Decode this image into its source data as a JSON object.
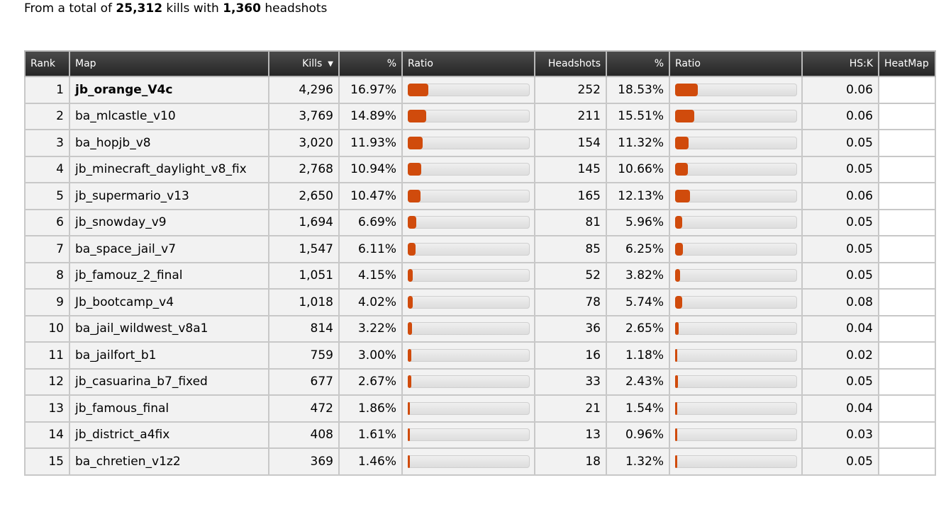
{
  "summary": {
    "prefix": "From a total of ",
    "total_kills": "25,312",
    "middle": " kills with ",
    "total_headshots": "1,360",
    "suffix": " headshots"
  },
  "table": {
    "headers": {
      "rank": "Rank",
      "map": "Map",
      "kills": "Kills",
      "kills_pct": "%",
      "kills_ratio": "Ratio",
      "headshots": "Headshots",
      "hs_pct": "%",
      "hs_ratio": "Ratio",
      "hsk": "HS:K",
      "heatmap": "HeatMap"
    },
    "sort_column": "kills",
    "sort_direction": "desc",
    "rows": [
      {
        "rank": "1",
        "map": "jb_orange_V4c",
        "bold": true,
        "kills": "4,296",
        "kills_pct": "16.97%",
        "kills_ratio": 16.97,
        "headshots": "252",
        "hs_pct": "18.53%",
        "hs_ratio": 18.53,
        "hsk": "0.06"
      },
      {
        "rank": "2",
        "map": "ba_mlcastle_v10",
        "kills": "3,769",
        "kills_pct": "14.89%",
        "kills_ratio": 14.89,
        "headshots": "211",
        "hs_pct": "15.51%",
        "hs_ratio": 15.51,
        "hsk": "0.06"
      },
      {
        "rank": "3",
        "map": "ba_hopjb_v8",
        "kills": "3,020",
        "kills_pct": "11.93%",
        "kills_ratio": 11.93,
        "headshots": "154",
        "hs_pct": "11.32%",
        "hs_ratio": 11.32,
        "hsk": "0.05"
      },
      {
        "rank": "4",
        "map": "jb_minecraft_daylight_v8_fix",
        "kills": "2,768",
        "kills_pct": "10.94%",
        "kills_ratio": 10.94,
        "headshots": "145",
        "hs_pct": "10.66%",
        "hs_ratio": 10.66,
        "hsk": "0.05"
      },
      {
        "rank": "5",
        "map": "jb_supermario_v13",
        "kills": "2,650",
        "kills_pct": "10.47%",
        "kills_ratio": 10.47,
        "headshots": "165",
        "hs_pct": "12.13%",
        "hs_ratio": 12.13,
        "hsk": "0.06"
      },
      {
        "rank": "6",
        "map": "jb_snowday_v9",
        "kills": "1,694",
        "kills_pct": "6.69%",
        "kills_ratio": 6.69,
        "headshots": "81",
        "hs_pct": "5.96%",
        "hs_ratio": 5.96,
        "hsk": "0.05"
      },
      {
        "rank": "7",
        "map": "ba_space_jail_v7",
        "kills": "1,547",
        "kills_pct": "6.11%",
        "kills_ratio": 6.11,
        "headshots": "85",
        "hs_pct": "6.25%",
        "hs_ratio": 6.25,
        "hsk": "0.05"
      },
      {
        "rank": "8",
        "map": "jb_famouz_2_final",
        "kills": "1,051",
        "kills_pct": "4.15%",
        "kills_ratio": 4.15,
        "headshots": "52",
        "hs_pct": "3.82%",
        "hs_ratio": 3.82,
        "hsk": "0.05"
      },
      {
        "rank": "9",
        "map": "Jb_bootcamp_v4",
        "kills": "1,018",
        "kills_pct": "4.02%",
        "kills_ratio": 4.02,
        "headshots": "78",
        "hs_pct": "5.74%",
        "hs_ratio": 5.74,
        "hsk": "0.08"
      },
      {
        "rank": "10",
        "map": "ba_jail_wildwest_v8a1",
        "kills": "814",
        "kills_pct": "3.22%",
        "kills_ratio": 3.22,
        "headshots": "36",
        "hs_pct": "2.65%",
        "hs_ratio": 2.65,
        "hsk": "0.04"
      },
      {
        "rank": "11",
        "map": "ba_jailfort_b1",
        "kills": "759",
        "kills_pct": "3.00%",
        "kills_ratio": 3.0,
        "headshots": "16",
        "hs_pct": "1.18%",
        "hs_ratio": 1.18,
        "hsk": "0.02"
      },
      {
        "rank": "12",
        "map": "jb_casuarina_b7_fixed",
        "kills": "677",
        "kills_pct": "2.67%",
        "kills_ratio": 2.67,
        "headshots": "33",
        "hs_pct": "2.43%",
        "hs_ratio": 2.43,
        "hsk": "0.05"
      },
      {
        "rank": "13",
        "map": "jb_famous_final",
        "kills": "472",
        "kills_pct": "1.86%",
        "kills_ratio": 1.86,
        "headshots": "21",
        "hs_pct": "1.54%",
        "hs_ratio": 1.54,
        "hsk": "0.04"
      },
      {
        "rank": "14",
        "map": "jb_district_a4fix",
        "kills": "408",
        "kills_pct": "1.61%",
        "kills_ratio": 1.61,
        "headshots": "13",
        "hs_pct": "0.96%",
        "hs_ratio": 0.96,
        "hsk": "0.03"
      },
      {
        "rank": "15",
        "map": "ba_chretien_v1z2",
        "kills": "369",
        "kills_pct": "1.46%",
        "kills_ratio": 1.46,
        "headshots": "18",
        "hs_pct": "1.32%",
        "hs_ratio": 1.32,
        "hsk": "0.05"
      }
    ]
  },
  "colors": {
    "bar_fill": "#d04b0c",
    "header_bg": "#333333",
    "row_bg": "#f2f2f2"
  },
  "icons": {
    "sort": "sort-descending-icon"
  }
}
